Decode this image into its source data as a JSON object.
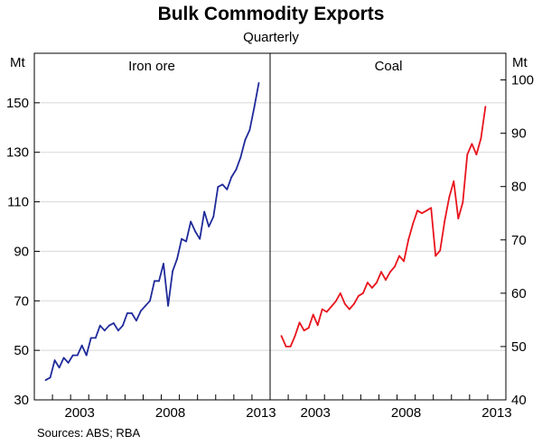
{
  "chart_data": {
    "type": "line",
    "title": "Bulk Commodity Exports",
    "subtitle": "Quarterly",
    "source": "Sources: ABS; RBA",
    "frequency": "quarterly",
    "grid": true,
    "x_ticks": [
      "2003",
      "2008",
      "2013"
    ],
    "panels": [
      {
        "name": "Iron ore",
        "unit": "Mt",
        "axis_side": "left",
        "ylim": [
          30,
          170
        ],
        "yticks": [
          30,
          50,
          70,
          90,
          110,
          130,
          150
        ],
        "color": "#1f2a9a",
        "start": "2001-Q3",
        "values": [
          38,
          39,
          46,
          43,
          47,
          45,
          48,
          48,
          52,
          48,
          55,
          55,
          60,
          58,
          60,
          61,
          58,
          60,
          65,
          65,
          62,
          66,
          68,
          70,
          78,
          78,
          85,
          68,
          82,
          87,
          95,
          94,
          102,
          98,
          95,
          106,
          100,
          104,
          116,
          117,
          115,
          120,
          123,
          128,
          135,
          139,
          148,
          158
        ]
      },
      {
        "name": "Coal",
        "unit": "Mt",
        "axis_side": "right",
        "ylim": [
          40,
          105
        ],
        "yticks": [
          40,
          50,
          60,
          70,
          80,
          90,
          100
        ],
        "color": "#e8141c",
        "start": "2001-Q3",
        "values": [
          52,
          50,
          50,
          52,
          54.5,
          53,
          53.5,
          56,
          54,
          57,
          56.5,
          57.5,
          58.5,
          60,
          58,
          57,
          58,
          59.5,
          60,
          62,
          61,
          62,
          64,
          62.5,
          64,
          65,
          67,
          66,
          70,
          73,
          75.5,
          75,
          75.5,
          76,
          67,
          68,
          73.5,
          78,
          81,
          74,
          77,
          86,
          88,
          86,
          89,
          95
        ]
      }
    ]
  }
}
